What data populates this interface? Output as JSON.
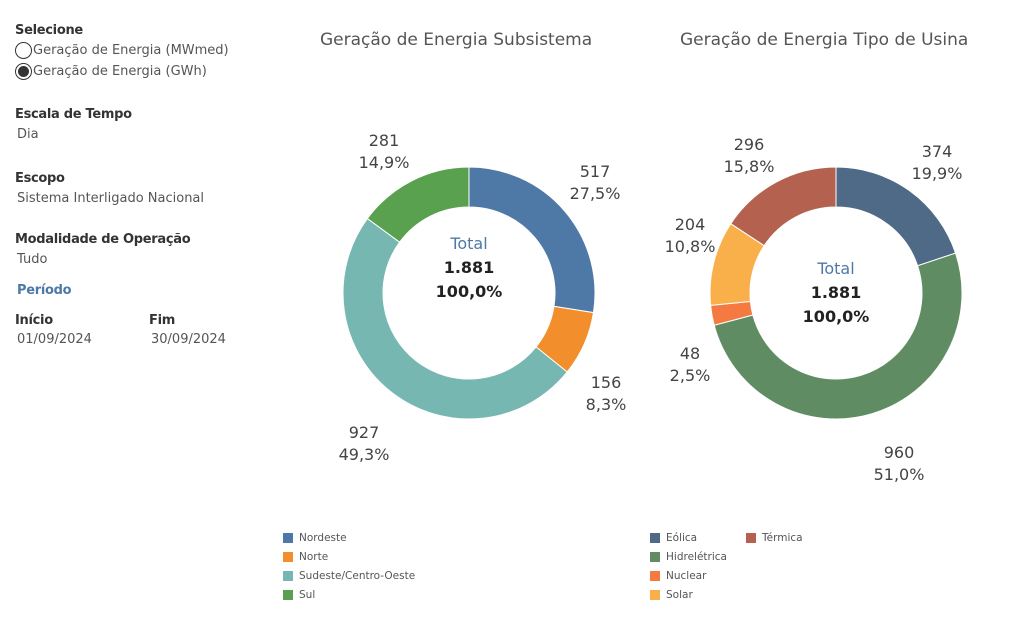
{
  "filters": {
    "select_label": "Selecione",
    "options": [
      {
        "label": "Geração de Energia (MWmed)",
        "selected": false
      },
      {
        "label": "Geração de Energia (GWh)",
        "selected": true
      }
    ],
    "time_scale_label": "Escala de Tempo",
    "time_scale_value": "Dia",
    "scope_label": "Escopo",
    "scope_value": "Sistema Interligado Nacional",
    "mode_label": "Modalidade de Operação",
    "mode_value": "Tudo",
    "period_label": "Período",
    "start_label": "Início",
    "start_value": "01/09/2024",
    "end_label": "Fim",
    "end_value": "30/09/2024"
  },
  "chart_data": [
    {
      "type": "pie",
      "title": "Geração de Energia Subsistema",
      "center": {
        "label": "Total",
        "value": "1.881",
        "pct": "100,0%"
      },
      "categories": [
        "Nordeste",
        "Norte",
        "Sudeste/Centro-Oeste",
        "Sul"
      ],
      "values": [
        517,
        156,
        927,
        281
      ],
      "value_labels": [
        "517",
        "156",
        "927",
        "281"
      ],
      "pct_labels": [
        "27,5%",
        "8,3%",
        "49,3%",
        "14,9%"
      ],
      "colors": [
        "#4e79a7",
        "#f28e2b",
        "#76b7b2",
        "#59a14f"
      ],
      "legend": "bottom"
    },
    {
      "type": "pie",
      "title": "Geração de Energia Tipo de Usina",
      "center": {
        "label": "Total",
        "value": "1.881",
        "pct": "100,0%"
      },
      "categories": [
        "Eólica",
        "Hidrelétrica",
        "Nuclear",
        "Solar",
        "Térmica"
      ],
      "values": [
        374,
        960,
        48,
        204,
        296
      ],
      "value_labels": [
        "374",
        "960",
        "48",
        "204",
        "296"
      ],
      "pct_labels": [
        "19,9%",
        "51,0%",
        "2,5%",
        "10,8%",
        "15,8%"
      ],
      "colors": [
        "#4f6a87",
        "#608c63",
        "#f47a42",
        "#f9b04a",
        "#b5614f"
      ],
      "legend": "bottom"
    }
  ]
}
